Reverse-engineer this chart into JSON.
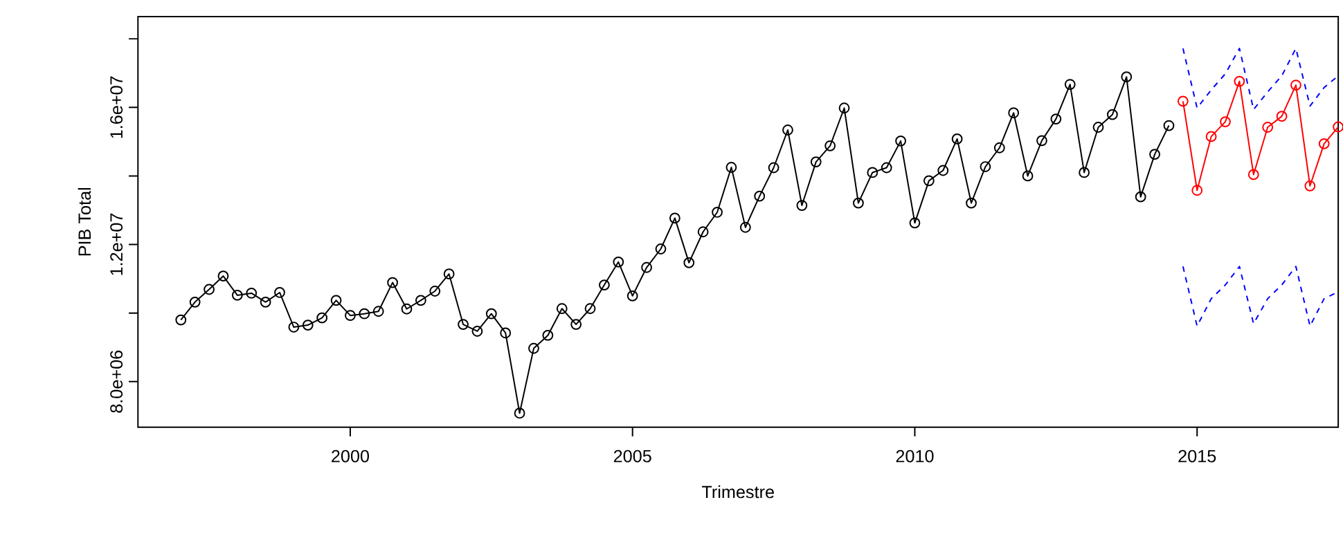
{
  "chart_data": {
    "type": "line",
    "xlabel": "Trimestre",
    "ylabel": "PIB Total",
    "xlim": [
      1996.24,
      2017.5
    ],
    "ylim": [
      6670000,
      18650000
    ],
    "xticks": [
      2000,
      2005,
      2010,
      2015
    ],
    "yticks": [
      {
        "value": 8000000,
        "label": "8.0e+06"
      },
      {
        "value": 10000000,
        "label": null
      },
      {
        "value": 12000000,
        "label": "1.2e+07"
      },
      {
        "value": 14000000,
        "label": null
      },
      {
        "value": 16000000,
        "label": "1.6e+07"
      },
      {
        "value": 18000000,
        "label": null
      }
    ],
    "series": [
      {
        "color": "#000000",
        "marker": "circle",
        "line_style": "solid",
        "x": [
          1997.0,
          1997.25,
          1997.5,
          1997.75,
          1998.0,
          1998.25,
          1998.5,
          1998.75,
          1999.0,
          1999.25,
          1999.5,
          1999.75,
          2000.0,
          2000.25,
          2000.5,
          2000.75,
          2001.0,
          2001.25,
          2001.5,
          2001.75,
          2002.0,
          2002.25,
          2002.5,
          2002.75,
          2003.0,
          2003.25,
          2003.5,
          2003.75,
          2004.0,
          2004.25,
          2004.5,
          2004.75,
          2005.0,
          2005.25,
          2005.5,
          2005.75,
          2006.0,
          2006.25,
          2006.5,
          2006.75,
          2007.0,
          2007.25,
          2007.5,
          2007.75,
          2008.0,
          2008.25,
          2008.5,
          2008.75,
          2009.0,
          2009.25,
          2009.5,
          2009.75,
          2010.0,
          2010.25,
          2010.5,
          2010.75,
          2011.0,
          2011.25,
          2011.5,
          2011.75,
          2012.0,
          2012.25,
          2012.5,
          2012.75,
          2013.0,
          2013.25,
          2013.5,
          2013.75,
          2014.0,
          2014.25,
          2014.5
        ],
        "values": [
          9800000,
          10320000,
          10690000,
          11080000,
          10520000,
          10580000,
          10320000,
          10600000,
          9590000,
          9650000,
          9860000,
          10370000,
          9930000,
          9980000,
          10050000,
          10890000,
          10120000,
          10370000,
          10640000,
          11140000,
          9670000,
          9470000,
          9980000,
          9420000,
          7080000,
          8970000,
          9350000,
          10130000,
          9670000,
          10130000,
          10820000,
          11490000,
          10500000,
          11330000,
          11870000,
          12770000,
          11470000,
          12370000,
          12940000,
          14250000,
          12500000,
          13410000,
          14240000,
          15340000,
          13140000,
          14410000,
          14880000,
          15980000,
          13210000,
          14100000,
          14240000,
          15020000,
          12630000,
          13860000,
          14160000,
          15080000,
          13210000,
          14270000,
          14820000,
          15840000,
          14000000,
          15030000,
          15660000,
          16670000,
          14100000,
          15420000,
          15790000,
          16890000,
          13390000,
          14630000,
          15470000
        ]
      },
      {
        "color": "#ff0000",
        "marker": "circle",
        "line_style": "solid",
        "x": [
          2014.75,
          2015.0,
          2015.25,
          2015.5,
          2015.75,
          2016.0,
          2016.25,
          2016.5,
          2016.75,
          2017.0,
          2017.25,
          2017.5
        ],
        "values": [
          16180000,
          13580000,
          15150000,
          15580000,
          16760000,
          14040000,
          15420000,
          15740000,
          16650000,
          13710000,
          14940000,
          15430000
        ]
      },
      {
        "color": "#0000ff",
        "marker": "none",
        "line_style": "dashed",
        "x": [
          2014.75,
          2015.0,
          2015.25,
          2015.5,
          2015.75,
          2016.0,
          2016.25,
          2016.5,
          2016.75,
          2017.0,
          2017.25,
          2017.5
        ],
        "values": [
          17720000,
          15980000,
          16510000,
          16980000,
          17720000,
          15940000,
          16450000,
          16920000,
          17720000,
          16040000,
          16580000,
          16920000
        ]
      },
      {
        "color": "#0000ff",
        "marker": "none",
        "line_style": "dashed",
        "x": [
          2014.75,
          2015.0,
          2015.25,
          2015.5,
          2015.75,
          2016.0,
          2016.25,
          2016.5,
          2016.75,
          2017.0,
          2017.25,
          2017.5
        ],
        "values": [
          11360000,
          9620000,
          10420000,
          10820000,
          11360000,
          9690000,
          10420000,
          10820000,
          11360000,
          9620000,
          10420000,
          10620000
        ]
      }
    ]
  }
}
